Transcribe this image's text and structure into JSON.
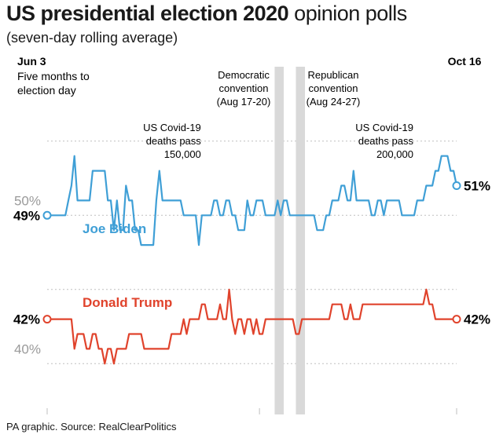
{
  "header": {
    "title_bold": "US presidential election 2020",
    "title_rest": "opinion polls",
    "subtitle": "(seven-day rolling average)"
  },
  "footer": {
    "source": "PA graphic. Source: RealClearPolitics"
  },
  "colors": {
    "biden": "#3f9fd6",
    "trump": "#e0432c",
    "grid": "#bfbfbf",
    "band": "#d9d9d9",
    "tick": "#9a9a9a"
  },
  "chart_data": {
    "type": "line",
    "title": "US presidential election 2020 opinion polls",
    "subtitle": "(seven-day rolling average)",
    "x_range": [
      "Jun 3",
      "Oct 16"
    ],
    "x_days": 135,
    "ylim": [
      36,
      56
    ],
    "ytick_labels": [
      {
        "value": 50,
        "label": "50%"
      },
      {
        "value": 40,
        "label": "40%"
      }
    ],
    "start_label": {
      "date": "Jun 3",
      "note": [
        "Five months to",
        "election day"
      ]
    },
    "end_label": {
      "date": "Oct 16"
    },
    "annotations": [
      {
        "day": 44,
        "lines": [
          "US Covid-19",
          "deaths pass",
          "150,000"
        ]
      },
      {
        "day": 114,
        "lines": [
          "US Covid-19",
          "deaths pass",
          "200,000"
        ]
      }
    ],
    "bands": [
      {
        "start_day": 75,
        "end_day": 78,
        "lines": [
          "Democratic",
          "convention",
          "(Aug 17-20)"
        ]
      },
      {
        "start_day": 82,
        "end_day": 85,
        "lines": [
          "Republican",
          "convention",
          "(Aug 24-27)"
        ]
      }
    ],
    "series": [
      {
        "name": "Joe Biden",
        "start_label": "49%",
        "end_label": "51%",
        "points": [
          [
            0,
            49
          ],
          [
            2,
            49
          ],
          [
            4,
            49
          ],
          [
            5,
            49
          ],
          [
            6,
            49
          ],
          [
            7,
            50
          ],
          [
            8,
            51
          ],
          [
            9,
            53
          ],
          [
            10,
            50
          ],
          [
            11,
            50
          ],
          [
            12,
            50
          ],
          [
            13,
            50
          ],
          [
            14,
            50
          ],
          [
            15,
            52
          ],
          [
            16,
            52
          ],
          [
            17,
            52
          ],
          [
            18,
            52
          ],
          [
            19,
            52
          ],
          [
            20,
            50
          ],
          [
            21,
            50
          ],
          [
            22,
            48
          ],
          [
            23,
            50
          ],
          [
            24,
            48
          ],
          [
            25,
            48
          ],
          [
            26,
            51
          ],
          [
            27,
            50
          ],
          [
            28,
            50
          ],
          [
            29,
            48
          ],
          [
            30,
            48
          ],
          [
            31,
            47
          ],
          [
            32,
            47
          ],
          [
            33,
            47
          ],
          [
            34,
            47
          ],
          [
            35,
            47
          ],
          [
            36,
            50
          ],
          [
            37,
            52
          ],
          [
            38,
            50
          ],
          [
            39,
            50
          ],
          [
            40,
            50
          ],
          [
            41,
            50
          ],
          [
            42,
            50
          ],
          [
            43,
            50
          ],
          [
            44,
            50
          ],
          [
            45,
            49
          ],
          [
            46,
            49
          ],
          [
            47,
            49
          ],
          [
            48,
            49
          ],
          [
            49,
            49
          ],
          [
            50,
            47
          ],
          [
            51,
            49
          ],
          [
            52,
            49
          ],
          [
            53,
            49
          ],
          [
            54,
            49
          ],
          [
            55,
            50
          ],
          [
            56,
            50
          ],
          [
            57,
            49
          ],
          [
            58,
            49
          ],
          [
            59,
            50
          ],
          [
            60,
            50
          ],
          [
            61,
            49
          ],
          [
            62,
            49
          ],
          [
            63,
            48
          ],
          [
            64,
            48
          ],
          [
            65,
            48
          ],
          [
            66,
            50
          ],
          [
            67,
            49
          ],
          [
            68,
            49
          ],
          [
            69,
            50
          ],
          [
            70,
            50
          ],
          [
            71,
            50
          ],
          [
            72,
            49
          ],
          [
            73,
            49
          ],
          [
            74,
            49
          ],
          [
            75,
            49
          ],
          [
            76,
            50
          ],
          [
            77,
            49
          ],
          [
            78,
            50
          ],
          [
            79,
            50
          ],
          [
            80,
            49
          ],
          [
            81,
            49
          ],
          [
            82,
            49
          ],
          [
            83,
            49
          ],
          [
            84,
            49
          ],
          [
            85,
            49
          ],
          [
            86,
            49
          ],
          [
            87,
            49
          ],
          [
            88,
            49
          ],
          [
            89,
            48
          ],
          [
            90,
            48
          ],
          [
            91,
            48
          ],
          [
            92,
            49
          ],
          [
            93,
            49
          ],
          [
            94,
            50
          ],
          [
            95,
            50
          ],
          [
            96,
            50
          ],
          [
            97,
            51
          ],
          [
            98,
            51
          ],
          [
            99,
            50
          ],
          [
            100,
            50
          ],
          [
            101,
            52
          ],
          [
            102,
            50
          ],
          [
            103,
            50
          ],
          [
            104,
            50
          ],
          [
            105,
            50
          ],
          [
            106,
            50
          ],
          [
            107,
            49
          ],
          [
            108,
            49
          ],
          [
            109,
            50
          ],
          [
            110,
            50
          ],
          [
            111,
            49
          ],
          [
            112,
            50
          ],
          [
            113,
            50
          ],
          [
            114,
            50
          ],
          [
            115,
            50
          ],
          [
            116,
            50
          ],
          [
            117,
            49
          ],
          [
            118,
            49
          ],
          [
            119,
            49
          ],
          [
            120,
            49
          ],
          [
            121,
            49
          ],
          [
            122,
            50
          ],
          [
            123,
            50
          ],
          [
            124,
            50
          ],
          [
            125,
            51
          ],
          [
            126,
            51
          ],
          [
            127,
            51
          ],
          [
            128,
            52
          ],
          [
            129,
            52
          ],
          [
            130,
            53
          ],
          [
            131,
            53
          ],
          [
            132,
            53
          ],
          [
            133,
            52
          ],
          [
            134,
            52
          ],
          [
            135,
            51
          ]
        ]
      },
      {
        "name": "Donald Trump",
        "start_label": "42%",
        "end_label": "42%",
        "points": [
          [
            0,
            42
          ],
          [
            2,
            42
          ],
          [
            4,
            42
          ],
          [
            5,
            42
          ],
          [
            6,
            42
          ],
          [
            7,
            42
          ],
          [
            8,
            42
          ],
          [
            9,
            40
          ],
          [
            10,
            41
          ],
          [
            11,
            41
          ],
          [
            12,
            41
          ],
          [
            13,
            40
          ],
          [
            14,
            40
          ],
          [
            15,
            41
          ],
          [
            16,
            41
          ],
          [
            17,
            40
          ],
          [
            18,
            40
          ],
          [
            19,
            39
          ],
          [
            20,
            40
          ],
          [
            21,
            40
          ],
          [
            22,
            39
          ],
          [
            23,
            40
          ],
          [
            24,
            40
          ],
          [
            25,
            40
          ],
          [
            26,
            40
          ],
          [
            27,
            41
          ],
          [
            28,
            41
          ],
          [
            29,
            41
          ],
          [
            30,
            41
          ],
          [
            31,
            41
          ],
          [
            32,
            40
          ],
          [
            33,
            40
          ],
          [
            34,
            40
          ],
          [
            35,
            40
          ],
          [
            36,
            40
          ],
          [
            37,
            40
          ],
          [
            38,
            40
          ],
          [
            39,
            40
          ],
          [
            40,
            40
          ],
          [
            41,
            41
          ],
          [
            42,
            41
          ],
          [
            43,
            41
          ],
          [
            44,
            41
          ],
          [
            45,
            42
          ],
          [
            46,
            41
          ],
          [
            47,
            42
          ],
          [
            48,
            42
          ],
          [
            49,
            42
          ],
          [
            50,
            42
          ],
          [
            51,
            43
          ],
          [
            52,
            43
          ],
          [
            53,
            42
          ],
          [
            54,
            42
          ],
          [
            55,
            42
          ],
          [
            56,
            42
          ],
          [
            57,
            43
          ],
          [
            58,
            42
          ],
          [
            59,
            42
          ],
          [
            60,
            44
          ],
          [
            61,
            42
          ],
          [
            62,
            41
          ],
          [
            63,
            42
          ],
          [
            64,
            42
          ],
          [
            65,
            41
          ],
          [
            66,
            42
          ],
          [
            67,
            42
          ],
          [
            68,
            41
          ],
          [
            69,
            42
          ],
          [
            70,
            41
          ],
          [
            71,
            41
          ],
          [
            72,
            42
          ],
          [
            73,
            42
          ],
          [
            74,
            42
          ],
          [
            75,
            42
          ],
          [
            76,
            42
          ],
          [
            77,
            42
          ],
          [
            78,
            42
          ],
          [
            79,
            42
          ],
          [
            80,
            42
          ],
          [
            81,
            42
          ],
          [
            82,
            41
          ],
          [
            83,
            41
          ],
          [
            84,
            42
          ],
          [
            85,
            42
          ],
          [
            86,
            42
          ],
          [
            87,
            42
          ],
          [
            88,
            42
          ],
          [
            89,
            42
          ],
          [
            90,
            42
          ],
          [
            91,
            42
          ],
          [
            92,
            42
          ],
          [
            93,
            42
          ],
          [
            94,
            43
          ],
          [
            95,
            43
          ],
          [
            96,
            43
          ],
          [
            97,
            43
          ],
          [
            98,
            42
          ],
          [
            99,
            42
          ],
          [
            100,
            43
          ],
          [
            101,
            42
          ],
          [
            102,
            42
          ],
          [
            103,
            42
          ],
          [
            104,
            43
          ],
          [
            105,
            43
          ],
          [
            106,
            43
          ],
          [
            107,
            43
          ],
          [
            108,
            43
          ],
          [
            109,
            43
          ],
          [
            110,
            43
          ],
          [
            111,
            43
          ],
          [
            112,
            43
          ],
          [
            113,
            43
          ],
          [
            114,
            43
          ],
          [
            115,
            43
          ],
          [
            116,
            43
          ],
          [
            117,
            43
          ],
          [
            118,
            43
          ],
          [
            119,
            43
          ],
          [
            120,
            43
          ],
          [
            121,
            43
          ],
          [
            122,
            43
          ],
          [
            123,
            43
          ],
          [
            124,
            43
          ],
          [
            125,
            44
          ],
          [
            126,
            43
          ],
          [
            127,
            43
          ],
          [
            128,
            42
          ],
          [
            129,
            42
          ],
          [
            130,
            42
          ],
          [
            131,
            42
          ],
          [
            132,
            42
          ],
          [
            133,
            42
          ],
          [
            134,
            42
          ],
          [
            135,
            42
          ]
        ]
      }
    ]
  }
}
